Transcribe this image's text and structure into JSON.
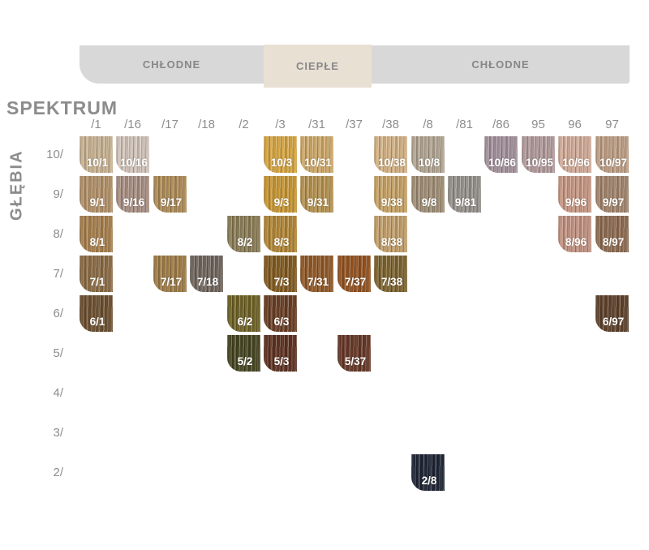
{
  "header": {
    "bands": [
      {
        "id": "cool-left",
        "label": "CHŁODNE"
      },
      {
        "id": "warm-mid",
        "label": "CIEPŁE"
      },
      {
        "id": "cool-right",
        "label": "CHŁODNE"
      }
    ]
  },
  "axes": {
    "spectrum_label": "SPEKTRUM",
    "depth_label": "GŁĘBIA"
  },
  "columns": [
    "/1",
    "/16",
    "/17",
    "/18",
    "/2",
    "/3",
    "/31",
    "/37",
    "/38",
    "/8",
    "/81",
    "/86",
    "95",
    "96",
    "97"
  ],
  "rows": [
    "10/",
    "9/",
    "8/",
    "7/",
    "6/",
    "5/",
    "4/",
    "3/",
    "2/"
  ],
  "swatches": [
    {
      "label": "10/1",
      "row": 0,
      "col": 0,
      "color": "#c8b291"
    },
    {
      "label": "10/16",
      "row": 0,
      "col": 1,
      "color": "#d1c3b9"
    },
    {
      "label": "10/3",
      "row": 0,
      "col": 5,
      "color": "#d5a440"
    },
    {
      "label": "10/31",
      "row": 0,
      "col": 6,
      "color": "#cda767"
    },
    {
      "label": "10/38",
      "row": 0,
      "col": 8,
      "color": "#d3b183"
    },
    {
      "label": "10/8",
      "row": 0,
      "col": 9,
      "color": "#b2a592"
    },
    {
      "label": "10/86",
      "row": 0,
      "col": 11,
      "color": "#a2909a"
    },
    {
      "label": "10/95",
      "row": 0,
      "col": 12,
      "color": "#b1999a"
    },
    {
      "label": "10/96",
      "row": 0,
      "col": 13,
      "color": "#d2aa97"
    },
    {
      "label": "10/97",
      "row": 0,
      "col": 14,
      "color": "#bd9d83"
    },
    {
      "label": "9/1",
      "row": 1,
      "col": 0,
      "color": "#b29067"
    },
    {
      "label": "9/16",
      "row": 1,
      "col": 1,
      "color": "#a78e82"
    },
    {
      "label": "9/17",
      "row": 1,
      "col": 2,
      "color": "#ad8a55"
    },
    {
      "label": "9/3",
      "row": 1,
      "col": 5,
      "color": "#c69532"
    },
    {
      "label": "9/31",
      "row": 1,
      "col": 6,
      "color": "#b4914f"
    },
    {
      "label": "9/38",
      "row": 1,
      "col": 8,
      "color": "#c6a164"
    },
    {
      "label": "9/8",
      "row": 1,
      "col": 9,
      "color": "#a08e75"
    },
    {
      "label": "9/81",
      "row": 1,
      "col": 10,
      "color": "#94908a"
    },
    {
      "label": "9/96",
      "row": 1,
      "col": 13,
      "color": "#c69682"
    },
    {
      "label": "9/97",
      "row": 1,
      "col": 14,
      "color": "#a1836b"
    },
    {
      "label": "8/1",
      "row": 2,
      "col": 0,
      "color": "#a67e4b"
    },
    {
      "label": "8/2",
      "row": 2,
      "col": 4,
      "color": "#8a7c55"
    },
    {
      "label": "8/3",
      "row": 2,
      "col": 5,
      "color": "#b08434"
    },
    {
      "label": "8/38",
      "row": 2,
      "col": 8,
      "color": "#c19e69"
    },
    {
      "label": "8/96",
      "row": 2,
      "col": 13,
      "color": "#c19180"
    },
    {
      "label": "8/97",
      "row": 2,
      "col": 14,
      "color": "#8d6a4f"
    },
    {
      "label": "7/1",
      "row": 3,
      "col": 0,
      "color": "#8a6a43"
    },
    {
      "label": "7/17",
      "row": 3,
      "col": 2,
      "color": "#9e7b45"
    },
    {
      "label": "7/18",
      "row": 3,
      "col": 3,
      "color": "#6f645c"
    },
    {
      "label": "7/3",
      "row": 3,
      "col": 5,
      "color": "#80591f"
    },
    {
      "label": "7/31",
      "row": 3,
      "col": 6,
      "color": "#8f5827"
    },
    {
      "label": "7/37",
      "row": 3,
      "col": 7,
      "color": "#92511f"
    },
    {
      "label": "7/38",
      "row": 3,
      "col": 8,
      "color": "#7b622f"
    },
    {
      "label": "6/1",
      "row": 4,
      "col": 0,
      "color": "#6b4e2e"
    },
    {
      "label": "6/2",
      "row": 4,
      "col": 4,
      "color": "#6d6124"
    },
    {
      "label": "6/3",
      "row": 4,
      "col": 5,
      "color": "#673c22"
    },
    {
      "label": "6/97",
      "row": 4,
      "col": 14,
      "color": "#5d4029"
    },
    {
      "label": "5/2",
      "row": 5,
      "col": 4,
      "color": "#454420"
    },
    {
      "label": "5/3",
      "row": 5,
      "col": 5,
      "color": "#5c3020"
    },
    {
      "label": "5/37",
      "row": 5,
      "col": 7,
      "color": "#653625"
    },
    {
      "label": "2/8",
      "row": 8,
      "col": 9,
      "color": "#1d2433"
    }
  ],
  "colors": {
    "band_cool": "#d8d8d8",
    "band_warm": "#e9e0d4",
    "label_gray": "#8d8d8d",
    "swatch_text": "#ffffff"
  }
}
